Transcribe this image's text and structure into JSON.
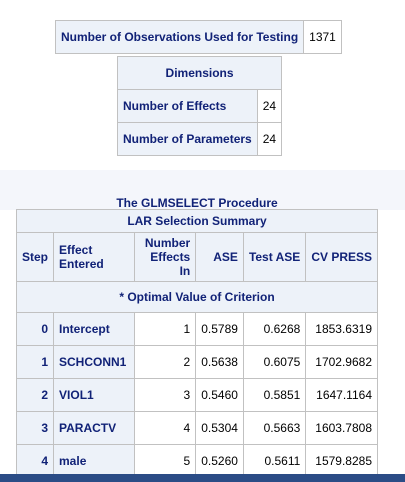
{
  "observations": {
    "label": "Number of Observations Used for Testing",
    "value": "1371"
  },
  "dimensions": {
    "title": "Dimensions",
    "rows": [
      {
        "label": "Number of Effects",
        "value": "24"
      },
      {
        "label": "Number of Parameters",
        "value": "24"
      }
    ]
  },
  "procedure_title": "The GLMSELECT Procedure",
  "lar_summary": {
    "title": "LAR Selection Summary",
    "headers": {
      "step": "Step",
      "effect": "Effect Entered",
      "number": "Number Effects In",
      "ase": "ASE",
      "test_ase": "Test ASE",
      "cv_press": "CV PRESS"
    },
    "note": "* Optimal Value of Criterion",
    "rows": [
      {
        "step": "0",
        "effect": "Intercept",
        "number": "1",
        "ase": "0.5789",
        "test_ase": "0.6268",
        "cv_press": "1853.6319"
      },
      {
        "step": "1",
        "effect": "SCHCONN1",
        "number": "2",
        "ase": "0.5638",
        "test_ase": "0.6075",
        "cv_press": "1702.9682"
      },
      {
        "step": "2",
        "effect": "VIOL1",
        "number": "3",
        "ase": "0.5460",
        "test_ase": "0.5851",
        "cv_press": "1647.1164"
      },
      {
        "step": "3",
        "effect": "PARACTV",
        "number": "4",
        "ase": "0.5304",
        "test_ase": "0.5663",
        "cv_press": "1603.7808"
      },
      {
        "step": "4",
        "effect": "male",
        "number": "5",
        "ase": "0.5260",
        "test_ase": "0.5611",
        "cv_press": "1579.8285"
      }
    ]
  }
}
